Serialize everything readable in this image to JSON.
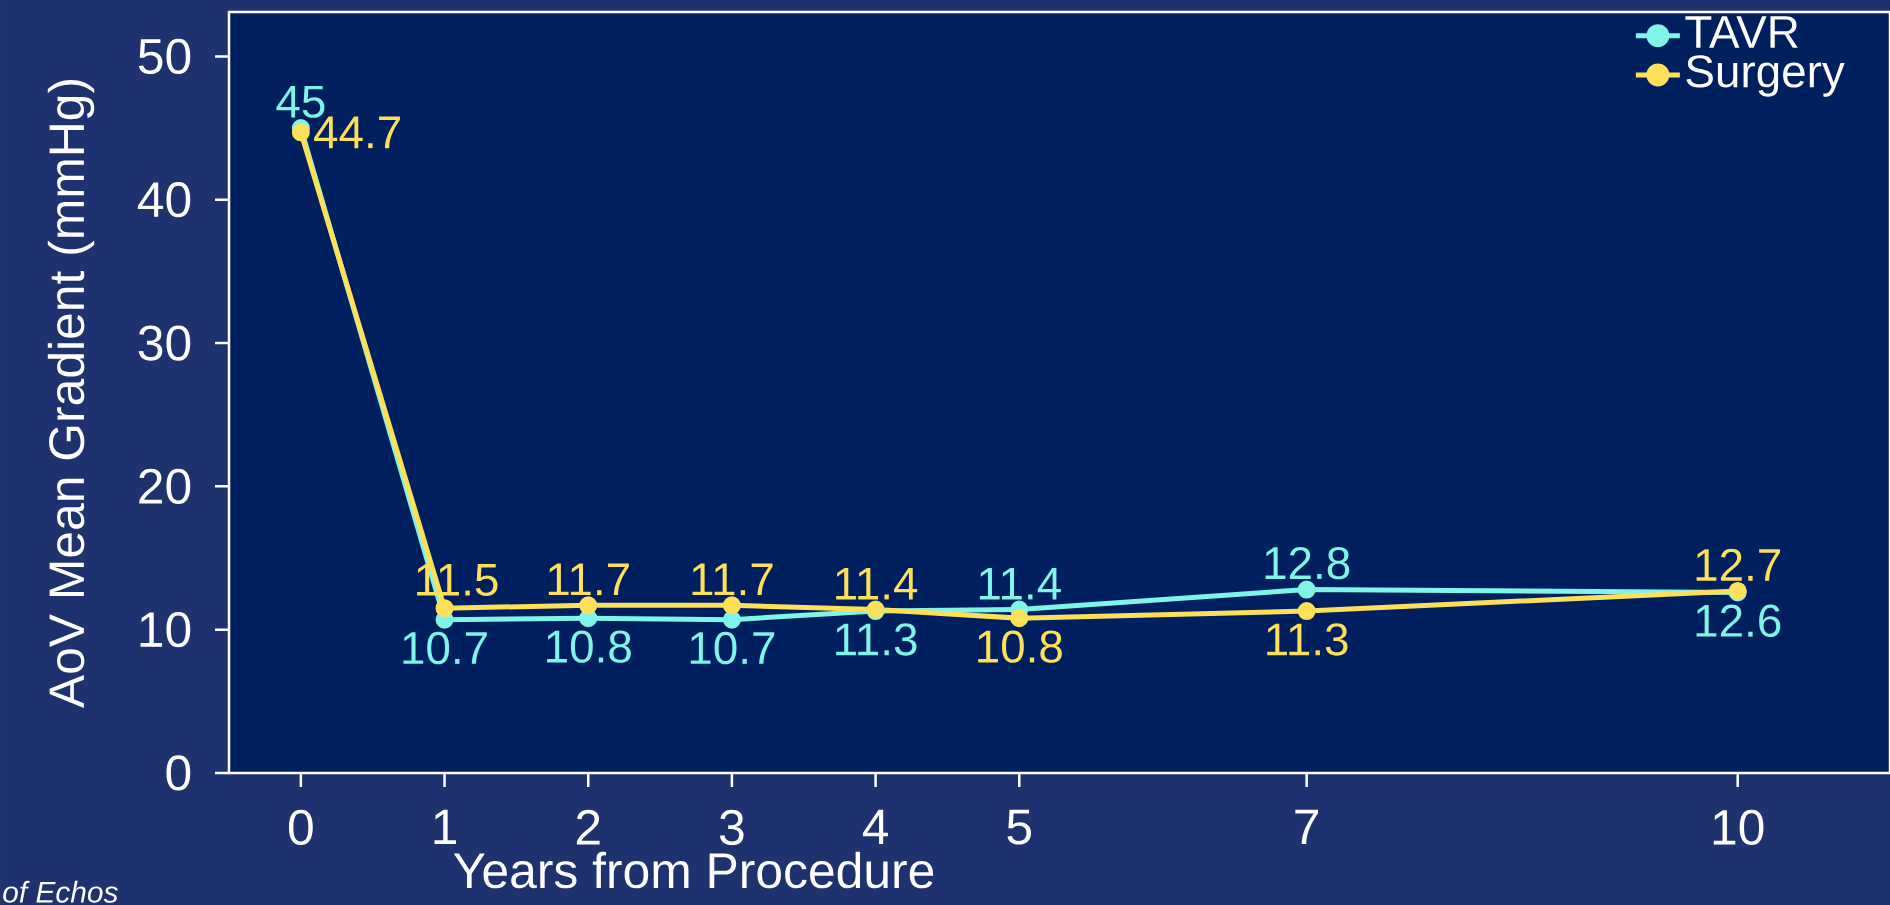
{
  "chart_data": {
    "type": "line",
    "xlabel": "Years from Procedure",
    "ylabel": "AoV Mean Gradient (mmHg)",
    "x": [
      0,
      1,
      2,
      3,
      4,
      5,
      7,
      10
    ],
    "series": [
      {
        "name": "TAVR",
        "color": "#7ff5e8",
        "values": [
          45,
          10.7,
          10.8,
          10.7,
          11.3,
          11.4,
          12.8,
          12.6
        ]
      },
      {
        "name": "Surgery",
        "color": "#fde05a",
        "values": [
          44.7,
          11.5,
          11.7,
          11.7,
          11.4,
          10.8,
          11.3,
          12.7
        ]
      }
    ],
    "xlim": [
      -0.5,
      11.06
    ],
    "ylim": [
      0,
      53.1
    ],
    "xticks": [
      0,
      1,
      2,
      3,
      4,
      5,
      7,
      10
    ],
    "yticks": [
      0,
      10,
      20,
      30,
      40,
      50
    ],
    "data_labels": true,
    "legend": "top right",
    "marker": "circle",
    "line_style": "solid",
    "annotations": [
      "of Echos"
    ]
  }
}
